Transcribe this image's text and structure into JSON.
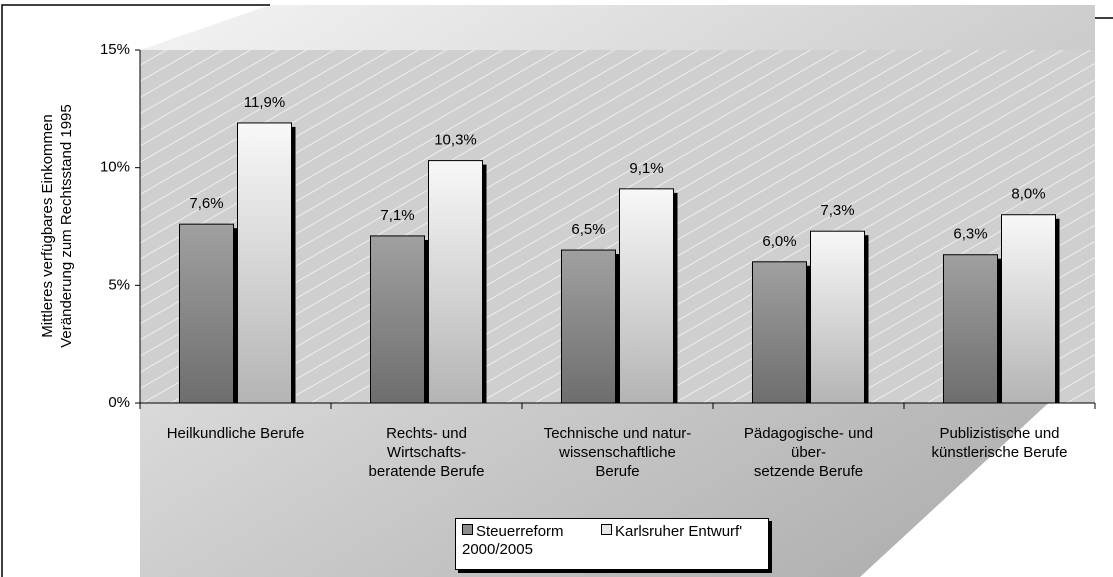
{
  "chart_data": {
    "type": "bar",
    "ylabel": [
      "Mittleres verfügbares Einkommen",
      "Veränderung zum Rechtsstand 1995"
    ],
    "categories": [
      "Heilkundliche Berufe",
      "Rechts- und\nWirtschafts-\nberatende Berufe",
      "Technische und natur-\nwissenschaftliche\nBerufe",
      "Pädagogische- und\nüber-\nsetzende Berufe",
      "Publizistische und\nkünstlerische Berufe"
    ],
    "series": [
      {
        "name": "Steuerreform\n2000/2005",
        "color": "#8c8c8c",
        "values": [
          7.6,
          7.1,
          6.5,
          6.0,
          6.3
        ],
        "value_labels": [
          "7,6%",
          "7,1%",
          "6,5%",
          "6,0%",
          "6,3%"
        ]
      },
      {
        "name": "Karlsruher Entwurf'",
        "color": "#e6e6e6",
        "values": [
          11.9,
          10.3,
          9.1,
          7.3,
          8.0
        ],
        "value_labels": [
          "11,9%",
          "10,3%",
          "9,1%",
          "7,3%",
          "8,0%"
        ]
      }
    ],
    "ylim": [
      0,
      15
    ],
    "yticks": [
      {
        "value": 0,
        "label": "0%"
      },
      {
        "value": 5,
        "label": "5%"
      },
      {
        "value": 10,
        "label": "10%"
      },
      {
        "value": 15,
        "label": "15%"
      }
    ]
  }
}
